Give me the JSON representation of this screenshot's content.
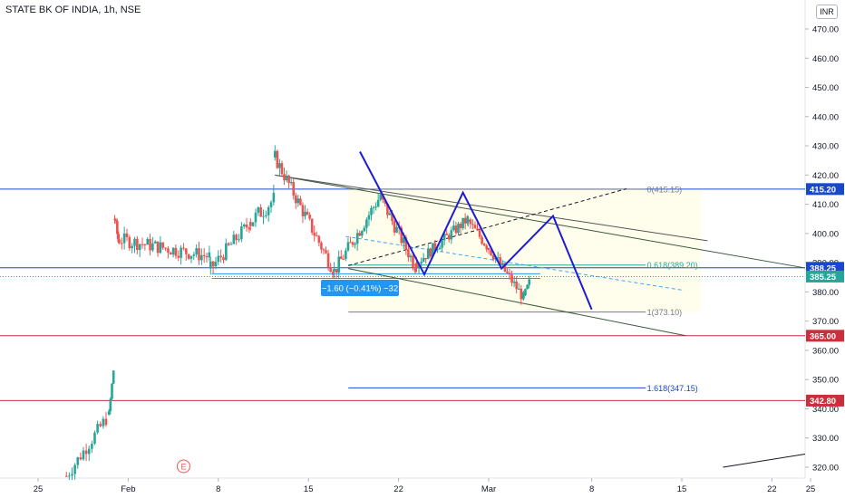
{
  "header": {
    "symbol": "STATE BK OF INDIA, 1h, NSE",
    "currency": "INR"
  },
  "chart_data": {
    "type": "candlestick",
    "y_axis": {
      "ticks": [
        320,
        330,
        340,
        350,
        360,
        370,
        380,
        390,
        400,
        410,
        420,
        430,
        440,
        450,
        460,
        470
      ],
      "tick_labels": [
        "320.00",
        "330.00",
        "340.00",
        "350.00",
        "360.00",
        "370.00",
        "380.00",
        "390.00",
        "400.00",
        "410.00",
        "420.00",
        "430.00",
        "440.00",
        "450.00",
        "460.00",
        "470.00"
      ],
      "ylim": [
        316,
        476
      ]
    },
    "x_axis": {
      "tick_labels": [
        "25",
        "Feb",
        "8",
        "15",
        "22",
        "Mar",
        "8",
        "15",
        "22",
        "25"
      ]
    },
    "price_labels": [
      {
        "value": 415.2,
        "text": "415.20",
        "color": "#1848cc"
      },
      {
        "value": 388.25,
        "text": "388.25",
        "color": "#1848cc"
      },
      {
        "value": 385.25,
        "text": "385.25",
        "color": "#26a69a"
      },
      {
        "value": 365.0,
        "text": "365.00",
        "color": "#cc2f3c"
      },
      {
        "value": 342.8,
        "text": "342.80",
        "color": "#cc2f3c"
      }
    ],
    "horizontal_levels": [
      {
        "value": 415.2,
        "color": "#1848cc"
      },
      {
        "value": 388.25,
        "color": "#1848cc"
      },
      {
        "value": 365.0,
        "color": "#cc2f3c"
      },
      {
        "value": 342.8,
        "color": "#cc2f3c"
      }
    ],
    "fib_levels": [
      {
        "ratio_label": "0(415.15)",
        "value": 415.15,
        "color": "#787b86"
      },
      {
        "ratio_label": "0.618(389.20)",
        "value": 389.2,
        "color": "#26a69a"
      },
      {
        "ratio_label": "1(373.10)",
        "value": 373.1,
        "color": "#787b86"
      },
      {
        "ratio_label": "1.618(347.15)",
        "value": 347.15,
        "color": "#1848cc"
      }
    ],
    "measure_label": "−1.60 (−0.41%) −32",
    "pattern_pivots": [
      {
        "date": "Feb 18",
        "price": 428
      },
      {
        "date": "Feb 23",
        "price": 386
      },
      {
        "date": "Feb 26",
        "price": 414
      },
      {
        "date": "Mar 1",
        "price": 388
      },
      {
        "date": "Mar 5",
        "price": 406
      },
      {
        "date": "Mar 8",
        "price": 374
      }
    ],
    "earnings_marker": "E",
    "colors": {
      "up": "#26a69a",
      "down": "#ef5350",
      "pattern": "#1c1cd6",
      "channel": "#3c5a3c"
    }
  }
}
